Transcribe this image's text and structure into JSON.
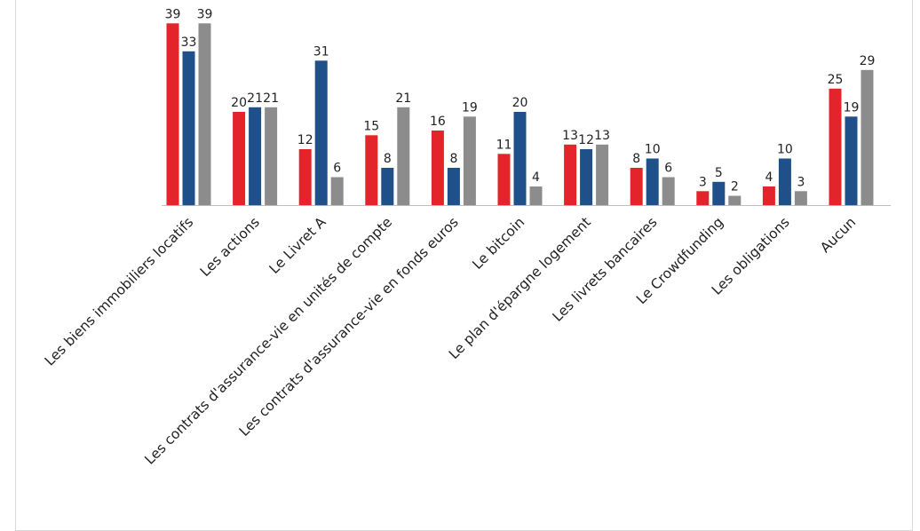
{
  "chart_data": {
    "type": "bar",
    "title": "",
    "xlabel": "",
    "ylabel": "",
    "ylim": [
      0,
      39
    ],
    "grid": false,
    "legend": "none",
    "categories": [
      "Les biens immobiliers locatifs",
      "Les actions",
      "Le Livret A",
      "Les contrats d'assurance-vie en unités de compte",
      "Les contrats d'assurance-vie en fonds euros",
      "Le bitcoin",
      "Le plan d'épargne logement",
      "Les livrets bancaires",
      "Le Crowdfunding",
      "Les obligations",
      "Aucun"
    ],
    "series": [
      {
        "color": "#e3242b",
        "values": [
          39,
          20,
          12,
          15,
          16,
          11,
          13,
          8,
          3,
          4,
          25
        ]
      },
      {
        "color": "#1f5089",
        "values": [
          33,
          21,
          31,
          8,
          8,
          20,
          12,
          10,
          5,
          10,
          19
        ]
      },
      {
        "color": "#8c8c8c",
        "values": [
          39,
          21,
          6,
          21,
          19,
          4,
          13,
          6,
          2,
          3,
          29
        ]
      }
    ],
    "axis_color": "#bfbfbf"
  }
}
